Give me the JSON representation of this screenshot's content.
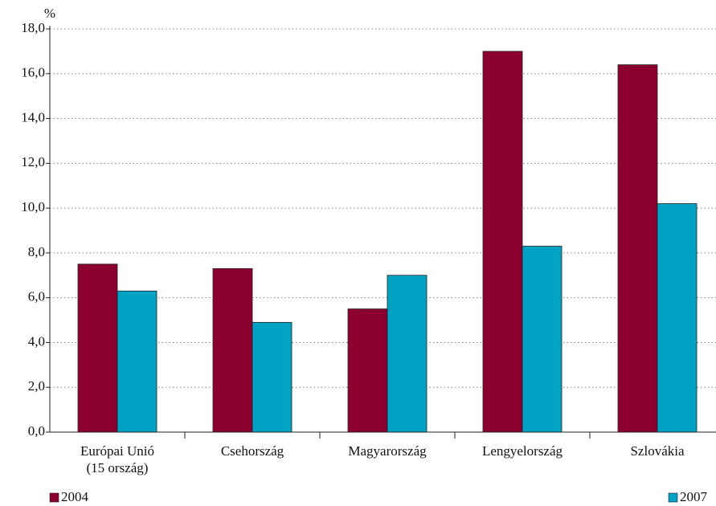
{
  "chart_data": {
    "type": "bar",
    "y_label": "%",
    "categories": [
      "Európai Unió\n(15 ország)",
      "Csehország",
      "Magyarország",
      "Lengyelország",
      "Szlovákia"
    ],
    "series": [
      {
        "name": "2004",
        "color": "#8c0030",
        "values": [
          7.5,
          7.3,
          5.5,
          17.0,
          16.4
        ]
      },
      {
        "name": "2007",
        "color": "#00a3c4",
        "values": [
          6.3,
          4.9,
          7.0,
          8.3,
          10.2
        ]
      }
    ],
    "ylim": [
      0,
      18
    ],
    "yticks": [
      {
        "value": 0,
        "label": "0,0"
      },
      {
        "value": 2,
        "label": "2,0"
      },
      {
        "value": 4,
        "label": "4,0"
      },
      {
        "value": 6,
        "label": "6,0"
      },
      {
        "value": 8,
        "label": "8,0"
      },
      {
        "value": 10,
        "label": "10,0"
      },
      {
        "value": 12,
        "label": "12,0"
      },
      {
        "value": 14,
        "label": "14,0"
      },
      {
        "value": 16,
        "label": "16,0"
      },
      {
        "value": 18,
        "label": "18,0"
      }
    ],
    "grid": true
  }
}
